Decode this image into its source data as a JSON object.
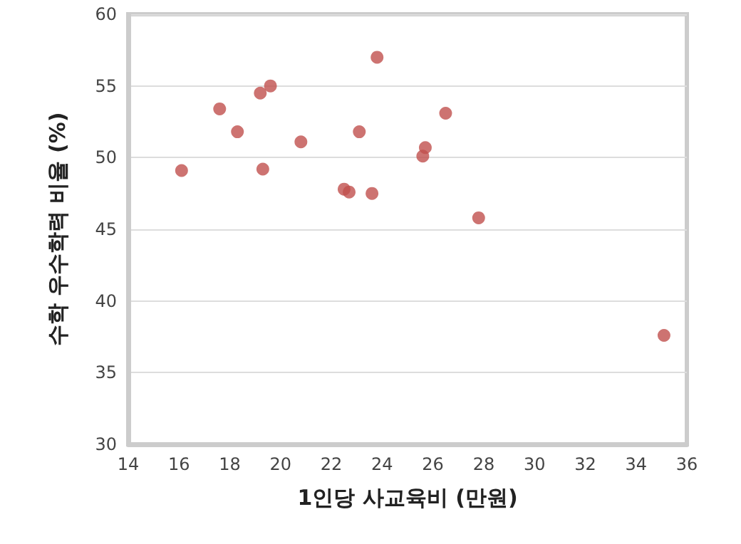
{
  "chart_data": {
    "type": "scatter",
    "xlabel": "1인당 사교육비 (만원)",
    "ylabel": "수학 우수학력 비율 (%)",
    "x": [
      16.1,
      17.6,
      18.3,
      19.2,
      19.6,
      19.3,
      20.8,
      22.5,
      22.7,
      23.1,
      23.6,
      23.8,
      25.6,
      25.7,
      26.5,
      27.8,
      35.1
    ],
    "values": [
      49.1,
      53.4,
      51.8,
      54.5,
      55.0,
      49.2,
      51.1,
      47.8,
      47.6,
      51.8,
      47.5,
      57.0,
      50.1,
      50.7,
      53.1,
      45.8,
      37.6
    ],
    "color": "#c0504d",
    "marker": "circle",
    "xlim": [
      14,
      36
    ],
    "xticks": [
      14,
      16,
      18,
      20,
      22,
      24,
      26,
      28,
      30,
      32,
      34,
      36
    ],
    "ylim": [
      30,
      60
    ],
    "yticks": [
      30,
      35,
      40,
      45,
      50,
      55,
      60
    ],
    "grid": "y"
  }
}
